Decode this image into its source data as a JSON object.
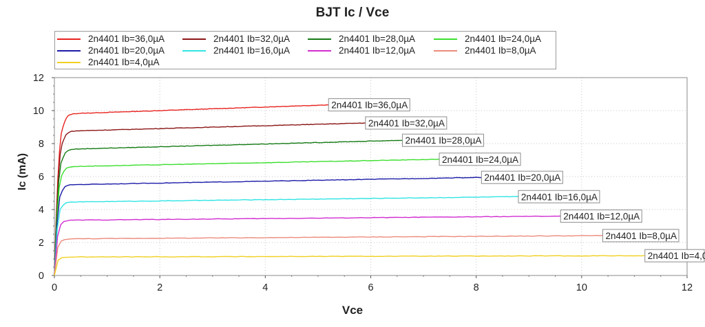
{
  "chart_data": {
    "type": "line",
    "title": "BJT Ic / Vce",
    "xlabel": "Vce",
    "ylabel": "Ic (mA)",
    "xlim": [
      0,
      12
    ],
    "ylim": [
      0,
      12
    ],
    "xticks": [
      0,
      2,
      4,
      6,
      8,
      10,
      12
    ],
    "yticks": [
      0,
      2,
      4,
      6,
      8,
      10,
      12
    ],
    "grid": true,
    "legend_position": "top",
    "series": [
      {
        "name": "2n4401 Ib=36,0µA",
        "color": "#e8221e",
        "x_end": 5.2,
        "sat": 9.8,
        "end": 10.35
      },
      {
        "name": "2n4401 Ib=32,0µA",
        "color": "#8b1515",
        "x_end": 5.9,
        "sat": 8.75,
        "end": 9.25
      },
      {
        "name": "2n4401 Ib=28,0µA",
        "color": "#137a13",
        "x_end": 6.6,
        "sat": 7.65,
        "end": 8.2
      },
      {
        "name": "2n4401 Ib=24,0µA",
        "color": "#3adf2c",
        "x_end": 7.3,
        "sat": 6.6,
        "end": 7.05
      },
      {
        "name": "2n4401 Ib=20,0µA",
        "color": "#1a1aa8",
        "x_end": 8.1,
        "sat": 5.5,
        "end": 5.95
      },
      {
        "name": "2n4401 Ib=16,0µA",
        "color": "#30e4e4",
        "x_end": 8.8,
        "sat": 4.45,
        "end": 4.78
      },
      {
        "name": "2n4401 Ib=12,0µA",
        "color": "#d12bd1",
        "x_end": 9.6,
        "sat": 3.35,
        "end": 3.6
      },
      {
        "name": "2n4401 Ib=8,0µA",
        "color": "#ec8a7a",
        "x_end": 10.4,
        "sat": 2.22,
        "end": 2.42
      },
      {
        "name": "2n4401 Ib=4,0µA",
        "color": "#f0d020",
        "x_end": 11.2,
        "sat": 1.12,
        "end": 1.2
      }
    ]
  }
}
